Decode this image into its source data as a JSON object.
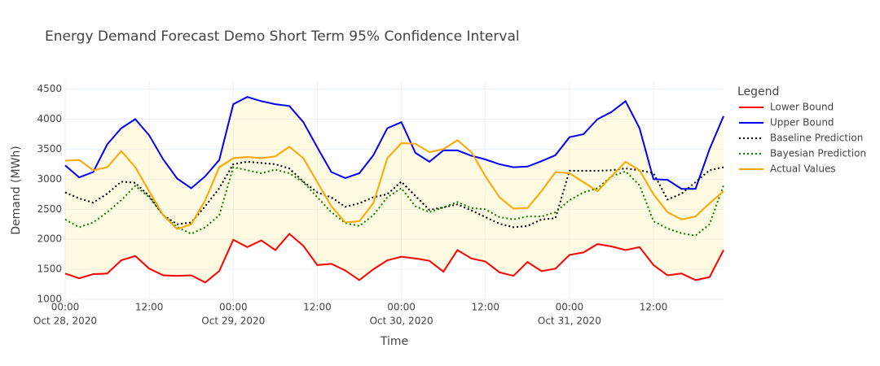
{
  "chart_data": {
    "type": "line",
    "title": "Energy Demand Forecast Demo Short Term 95% Confidence Interval",
    "x_label": "Time",
    "y_label": "Demand (MWh)",
    "legend_title": "Legend",
    "legend_position": "right",
    "grid": true,
    "x": [
      "2020-10-28 00:00",
      "2020-10-28 02:00",
      "2020-10-28 04:00",
      "2020-10-28 06:00",
      "2020-10-28 08:00",
      "2020-10-28 10:00",
      "2020-10-28 12:00",
      "2020-10-28 14:00",
      "2020-10-28 16:00",
      "2020-10-28 18:00",
      "2020-10-28 20:00",
      "2020-10-28 22:00",
      "2020-10-29 00:00",
      "2020-10-29 02:00",
      "2020-10-29 04:00",
      "2020-10-29 06:00",
      "2020-10-29 08:00",
      "2020-10-29 10:00",
      "2020-10-29 12:00",
      "2020-10-29 14:00",
      "2020-10-29 16:00",
      "2020-10-29 18:00",
      "2020-10-29 20:00",
      "2020-10-29 22:00",
      "2020-10-30 00:00",
      "2020-10-30 02:00",
      "2020-10-30 04:00",
      "2020-10-30 06:00",
      "2020-10-30 08:00",
      "2020-10-30 10:00",
      "2020-10-30 12:00",
      "2020-10-30 14:00",
      "2020-10-30 16:00",
      "2020-10-30 18:00",
      "2020-10-30 20:00",
      "2020-10-30 22:00",
      "2020-10-31 00:00",
      "2020-10-31 02:00",
      "2020-10-31 04:00",
      "2020-10-31 06:00",
      "2020-10-31 08:00",
      "2020-10-31 10:00",
      "2020-10-31 12:00",
      "2020-10-31 14:00",
      "2020-10-31 16:00",
      "2020-10-31 18:00",
      "2020-10-31 20:00",
      "2020-10-31 22:00"
    ],
    "xlim": [
      "2020-10-28 00:00",
      "2020-10-31 22:00"
    ],
    "xticks": [
      {
        "value": "2020-10-28 00:00",
        "label": "00:00",
        "date": "Oct 28, 2020"
      },
      {
        "value": "2020-10-28 12:00",
        "label": "12:00"
      },
      {
        "value": "2020-10-29 00:00",
        "label": "00:00",
        "date": "Oct 29, 2020"
      },
      {
        "value": "2020-10-29 12:00",
        "label": "12:00"
      },
      {
        "value": "2020-10-30 00:00",
        "label": "00:00",
        "date": "Oct 30, 2020"
      },
      {
        "value": "2020-10-30 12:00",
        "label": "12:00"
      },
      {
        "value": "2020-10-31 00:00",
        "label": "00:00",
        "date": "Oct 31, 2020"
      },
      {
        "value": "2020-10-31 12:00",
        "label": "12:00"
      }
    ],
    "ylim": [
      1000,
      4630
    ],
    "yticks": [
      1000,
      1500,
      2000,
      2500,
      3000,
      3500,
      4000,
      4500
    ],
    "series": [
      {
        "name": "Lower Bound",
        "color": "#ff0000",
        "dash": "solid",
        "values": [
          1430,
          1350,
          1420,
          1430,
          1650,
          1720,
          1510,
          1400,
          1390,
          1400,
          1280,
          1470,
          1990,
          1870,
          1980,
          1820,
          2090,
          1890,
          1570,
          1590,
          1480,
          1320,
          1500,
          1650,
          1710,
          1680,
          1640,
          1460,
          1820,
          1680,
          1630,
          1450,
          1390,
          1620,
          1470,
          1510,
          1740,
          1780,
          1920,
          1880,
          1820,
          1870,
          1570,
          1400,
          1430,
          1320,
          1370,
          1820
        ]
      },
      {
        "name": "Upper Bound",
        "color": "#0000ff",
        "dash": "solid",
        "fill": "tonexty",
        "fill_color": "rgba(255,236,150,0.28)",
        "values": [
          3230,
          3030,
          3120,
          3580,
          3850,
          4000,
          3730,
          3330,
          3010,
          2850,
          3050,
          3320,
          4250,
          4370,
          4300,
          4250,
          4220,
          3950,
          3530,
          3120,
          3020,
          3100,
          3400,
          3850,
          3950,
          3440,
          3290,
          3480,
          3480,
          3390,
          3330,
          3250,
          3200,
          3210,
          3300,
          3400,
          3700,
          3750,
          4000,
          4120,
          4300,
          3850,
          3000,
          2990,
          2840,
          2840,
          3500,
          4050
        ]
      },
      {
        "name": "Baseline Prediction",
        "color": "#000000",
        "dash": "dot",
        "values": [
          2780,
          2680,
          2610,
          2760,
          2960,
          2940,
          2720,
          2400,
          2250,
          2280,
          2550,
          2850,
          3250,
          3290,
          3270,
          3250,
          3180,
          2960,
          2780,
          2700,
          2540,
          2600,
          2700,
          2750,
          2960,
          2720,
          2490,
          2530,
          2580,
          2480,
          2370,
          2260,
          2200,
          2220,
          2330,
          2350,
          3140,
          3140,
          3140,
          3150,
          3180,
          3150,
          3100,
          2660,
          2760,
          2950,
          3150,
          3200
        ]
      },
      {
        "name": "Bayesian Prediction",
        "color": "#008000",
        "dash": "dot",
        "values": [
          2330,
          2200,
          2280,
          2450,
          2650,
          2890,
          2700,
          2400,
          2200,
          2090,
          2200,
          2400,
          3200,
          3150,
          3100,
          3160,
          3100,
          2950,
          2700,
          2450,
          2270,
          2220,
          2400,
          2700,
          2850,
          2550,
          2450,
          2530,
          2620,
          2520,
          2500,
          2370,
          2330,
          2380,
          2380,
          2450,
          2650,
          2780,
          2850,
          3050,
          3130,
          2900,
          2300,
          2180,
          2100,
          2060,
          2250,
          2900
        ]
      },
      {
        "name": "Actual Values",
        "color": "#ffa500",
        "dash": "solid",
        "values": [
          3310,
          3320,
          3150,
          3200,
          3470,
          3200,
          2800,
          2400,
          2170,
          2250,
          2650,
          3200,
          3350,
          3370,
          3350,
          3380,
          3540,
          3350,
          2950,
          2550,
          2280,
          2300,
          2600,
          3350,
          3600,
          3590,
          3450,
          3500,
          3650,
          3450,
          3050,
          2700,
          2510,
          2520,
          2800,
          3120,
          3100,
          2950,
          2800,
          3050,
          3290,
          3150,
          2750,
          2450,
          2330,
          2380,
          2600,
          2800
        ]
      }
    ]
  }
}
